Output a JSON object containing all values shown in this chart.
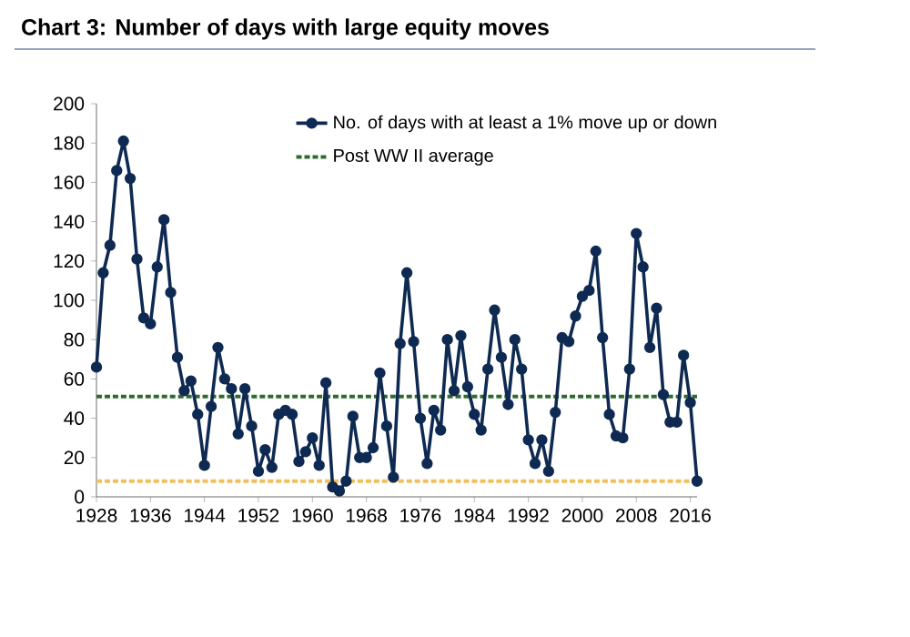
{
  "chart_data": {
    "type": "line",
    "title": "Chart 3: Number of days with large equity moves",
    "x": [
      1928,
      1929,
      1930,
      1931,
      1932,
      1933,
      1934,
      1935,
      1936,
      1937,
      1938,
      1939,
      1940,
      1941,
      1942,
      1943,
      1944,
      1945,
      1946,
      1947,
      1948,
      1949,
      1950,
      1951,
      1952,
      1953,
      1954,
      1955,
      1956,
      1957,
      1958,
      1959,
      1960,
      1961,
      1962,
      1963,
      1964,
      1965,
      1966,
      1967,
      1968,
      1969,
      1970,
      1971,
      1972,
      1973,
      1974,
      1975,
      1976,
      1977,
      1978,
      1979,
      1980,
      1981,
      1982,
      1983,
      1984,
      1985,
      1986,
      1987,
      1988,
      1989,
      1990,
      1991,
      1992,
      1993,
      1994,
      1995,
      1996,
      1997,
      1998,
      1999,
      2000,
      2001,
      2002,
      2003,
      2004,
      2005,
      2006,
      2007,
      2008,
      2009,
      2010,
      2011,
      2012,
      2013,
      2014,
      2015,
      2016,
      2017
    ],
    "series": [
      {
        "name": "No. of days with at least a 1% move up or down",
        "color": "#0f2a52",
        "values": [
          66,
          114,
          128,
          166,
          181,
          162,
          121,
          91,
          88,
          117,
          141,
          104,
          71,
          54,
          59,
          42,
          16,
          46,
          76,
          60,
          55,
          32,
          55,
          36,
          13,
          24,
          15,
          42,
          44,
          42,
          18,
          23,
          30,
          16,
          58,
          5,
          3,
          8,
          41,
          20,
          20,
          25,
          63,
          36,
          10,
          78,
          114,
          79,
          40,
          17,
          44,
          34,
          80,
          54,
          82,
          56,
          42,
          34,
          65,
          95,
          71,
          47,
          80,
          65,
          29,
          17,
          29,
          13,
          43,
          81,
          79,
          92,
          102,
          105,
          125,
          81,
          42,
          31,
          30,
          65,
          134,
          117,
          76,
          96,
          52,
          38,
          38,
          72,
          48,
          8
        ]
      }
    ],
    "xlim": [
      1928,
      2017
    ],
    "ylim": [
      0,
      200
    ],
    "xticks": [
      1928,
      1936,
      1944,
      1952,
      1960,
      1968,
      1976,
      1984,
      1992,
      2000,
      2008,
      2016
    ],
    "yticks": [
      0,
      20,
      40,
      60,
      80,
      100,
      120,
      140,
      160,
      180,
      200
    ],
    "marker": "circle",
    "line_style": "solid",
    "legend": "top",
    "ref_lines": [
      {
        "axis": "y",
        "value": 51,
        "label": "Post WW II average",
        "color": "#2e6b2e",
        "line_style": "dashed"
      },
      {
        "axis": "y",
        "value": 8,
        "color": "#f0c060",
        "line_style": "dashed"
      }
    ]
  }
}
